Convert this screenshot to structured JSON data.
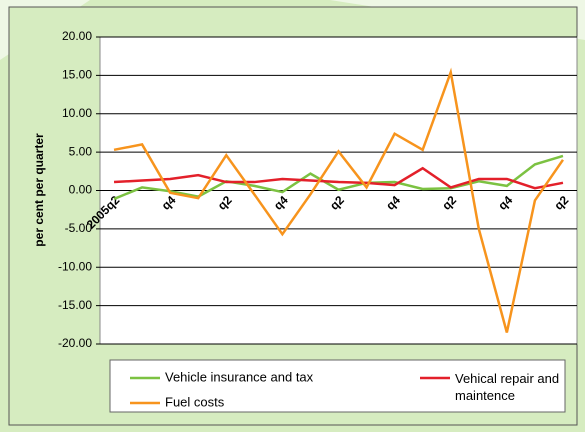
{
  "chart_data": {
    "type": "line",
    "ylabel": "per cent per quarter",
    "categories": [
      "2005q2",
      null,
      "q4",
      null,
      "q2",
      null,
      "q4",
      null,
      "q2",
      null,
      "q4",
      null,
      "q2",
      null,
      "q4",
      null,
      "q2"
    ],
    "series": [
      {
        "name": "Vehicle insurance and tax",
        "color": "#7cc242",
        "values": [
          -1.1,
          0.4,
          -0.1,
          -0.8,
          1.2,
          0.6,
          -0.2,
          2.2,
          0.1,
          1.0,
          1.1,
          0.2,
          0.3,
          1.2,
          0.6,
          3.4,
          4.5
        ]
      },
      {
        "name": "Vehical repair and maintence",
        "color": "#e3202a",
        "values": [
          1.1,
          1.3,
          1.5,
          2.0,
          1.1,
          1.1,
          1.5,
          1.3,
          1.1,
          1.0,
          0.7,
          2.9,
          0.4,
          1.5,
          1.5,
          0.3,
          1.0
        ]
      },
      {
        "name": "Fuel costs",
        "color": "#f7941d",
        "values": [
          5.3,
          6.0,
          -0.3,
          -1.0,
          4.6,
          -0.5,
          -5.7,
          -0.5,
          5.1,
          0.4,
          7.4,
          5.3,
          15.4,
          -5.0,
          -18.5,
          -1.3,
          4.0
        ]
      }
    ],
    "ylim": [
      -20,
      20
    ],
    "yticks": [
      {
        "value": 20,
        "label": "20.00"
      },
      {
        "value": 15,
        "label": "15.00"
      },
      {
        "value": 10,
        "label": "10.00"
      },
      {
        "value": 5,
        "label": "5.00"
      },
      {
        "value": 0,
        "label": "0.00"
      },
      {
        "value": -5,
        "label": "-5.00"
      },
      {
        "value": -10,
        "label": "-10.00"
      },
      {
        "value": -15,
        "label": "-15.00"
      },
      {
        "value": -20,
        "label": "-20.00"
      }
    ],
    "grid": true
  }
}
